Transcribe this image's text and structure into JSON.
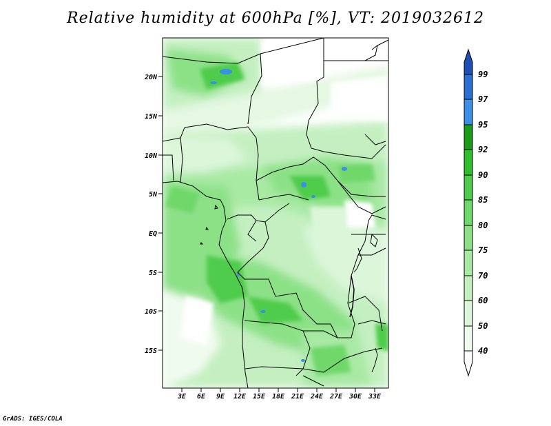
{
  "title": "Relative humidity at 600hPa [%], VT: 2019032612",
  "credit": "GrADS: IGES/COLA",
  "map": {
    "lat_ticks": [
      "20N",
      "15N",
      "10N",
      "5N",
      "EQ",
      "5S",
      "10S",
      "15S"
    ],
    "lon_ticks": [
      "3E",
      "6E",
      "9E",
      "12E",
      "15E",
      "18E",
      "21E",
      "24E",
      "27E",
      "30E",
      "33E"
    ]
  },
  "colorbar": {
    "levels": [
      "99",
      "97",
      "95",
      "92",
      "90",
      "85",
      "80",
      "75",
      "70",
      "60",
      "50",
      "40"
    ],
    "colors": {
      "c40_50": "#f0fbef",
      "c50_60": "#dcf6da",
      "c60_70": "#c4f0c1",
      "c70_75": "#a8e9a4",
      "c75_80": "#8ce187",
      "c80_85": "#6fd86a",
      "c85_90": "#50cc4c",
      "c90_92": "#2fbf2f",
      "c92_95": "#1a9e1a",
      "c95_97": "#3c8fe6",
      "c97_99": "#2a6fd6",
      "c99p": "#1e4fb4"
    }
  }
}
